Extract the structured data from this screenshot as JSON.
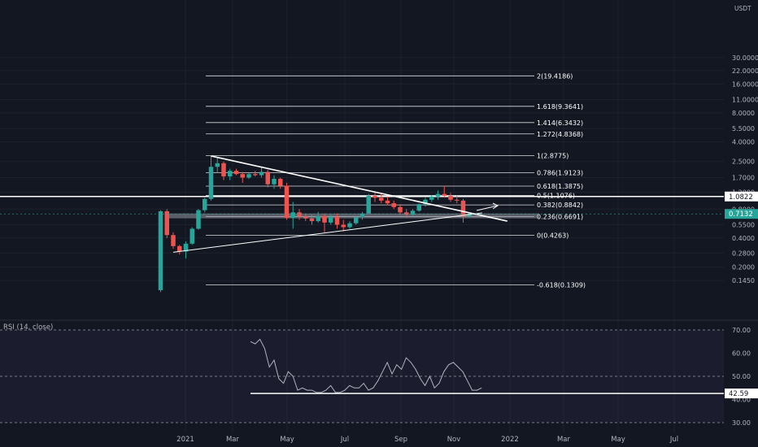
{
  "chart_data": [
    {
      "type": "candlestick",
      "scale": "log",
      "quote_currency": "USDT",
      "ylim": [
        0.12,
        32
      ],
      "x": [
        "2021",
        "Mar",
        "May",
        "Jul",
        "Sep",
        "Nov",
        "2022",
        "Mar",
        "May",
        "Jul"
      ],
      "y_ticks": [
        "30.0000",
        "22.0000",
        "16.0000",
        "11.0000",
        "8.0000",
        "5.5000",
        "4.0000",
        "2.5000",
        "1.7000",
        "1.2000",
        "0.8000",
        "0.5500",
        "0.4000",
        "0.2800",
        "0.2000",
        "0.1450"
      ],
      "candles": [
        {
          "o": 0.115,
          "h": 0.78,
          "l": 0.11,
          "c": 0.76
        },
        {
          "o": 0.76,
          "h": 0.8,
          "l": 0.4,
          "c": 0.43
        },
        {
          "o": 0.43,
          "h": 0.46,
          "l": 0.31,
          "c": 0.33
        },
        {
          "o": 0.33,
          "h": 0.34,
          "l": 0.27,
          "c": 0.29
        },
        {
          "o": 0.29,
          "h": 0.37,
          "l": 0.245,
          "c": 0.35
        },
        {
          "o": 0.35,
          "h": 0.52,
          "l": 0.34,
          "c": 0.5
        },
        {
          "o": 0.5,
          "h": 0.8,
          "l": 0.49,
          "c": 0.78
        },
        {
          "o": 0.78,
          "h": 1.05,
          "l": 0.74,
          "c": 1.02
        },
        {
          "o": 1.02,
          "h": 2.9,
          "l": 0.98,
          "c": 2.2
        },
        {
          "o": 2.2,
          "h": 2.75,
          "l": 1.9,
          "c": 2.4
        },
        {
          "o": 2.4,
          "h": 2.5,
          "l": 1.6,
          "c": 1.75
        },
        {
          "o": 1.75,
          "h": 2.1,
          "l": 1.6,
          "c": 2.0
        },
        {
          "o": 2.0,
          "h": 2.1,
          "l": 1.8,
          "c": 1.85
        },
        {
          "o": 1.85,
          "h": 1.95,
          "l": 1.5,
          "c": 1.7
        },
        {
          "o": 1.7,
          "h": 1.9,
          "l": 1.65,
          "c": 1.85
        },
        {
          "o": 1.85,
          "h": 2.0,
          "l": 1.75,
          "c": 1.8
        },
        {
          "o": 1.8,
          "h": 2.2,
          "l": 1.7,
          "c": 1.95
        },
        {
          "o": 1.95,
          "h": 2.05,
          "l": 1.35,
          "c": 1.45
        },
        {
          "o": 1.45,
          "h": 1.8,
          "l": 1.3,
          "c": 1.65
        },
        {
          "o": 1.65,
          "h": 1.7,
          "l": 1.3,
          "c": 1.4
        },
        {
          "o": 1.4,
          "h": 1.5,
          "l": 0.62,
          "c": 0.65
        },
        {
          "o": 0.65,
          "h": 0.95,
          "l": 0.5,
          "c": 0.74
        },
        {
          "o": 0.74,
          "h": 0.8,
          "l": 0.62,
          "c": 0.67
        },
        {
          "o": 0.67,
          "h": 0.72,
          "l": 0.6,
          "c": 0.64
        },
        {
          "o": 0.64,
          "h": 0.7,
          "l": 0.55,
          "c": 0.6
        },
        {
          "o": 0.6,
          "h": 0.75,
          "l": 0.58,
          "c": 0.68
        },
        {
          "o": 0.68,
          "h": 0.72,
          "l": 0.46,
          "c": 0.58
        },
        {
          "o": 0.58,
          "h": 0.7,
          "l": 0.55,
          "c": 0.66
        },
        {
          "o": 0.66,
          "h": 0.72,
          "l": 0.5,
          "c": 0.55
        },
        {
          "o": 0.55,
          "h": 0.62,
          "l": 0.47,
          "c": 0.52
        },
        {
          "o": 0.52,
          "h": 0.6,
          "l": 0.5,
          "c": 0.57
        },
        {
          "o": 0.57,
          "h": 0.68,
          "l": 0.55,
          "c": 0.66
        },
        {
          "o": 0.66,
          "h": 0.75,
          "l": 0.62,
          "c": 0.72
        },
        {
          "o": 0.72,
          "h": 1.15,
          "l": 0.7,
          "c": 1.1
        },
        {
          "o": 1.1,
          "h": 1.2,
          "l": 0.95,
          "c": 1.05
        },
        {
          "o": 1.05,
          "h": 1.15,
          "l": 0.92,
          "c": 0.98
        },
        {
          "o": 0.98,
          "h": 1.08,
          "l": 0.88,
          "c": 0.92
        },
        {
          "o": 0.92,
          "h": 0.98,
          "l": 0.8,
          "c": 0.84
        },
        {
          "o": 0.84,
          "h": 0.9,
          "l": 0.7,
          "c": 0.74
        },
        {
          "o": 0.74,
          "h": 0.8,
          "l": 0.65,
          "c": 0.7
        },
        {
          "o": 0.7,
          "h": 0.8,
          "l": 0.68,
          "c": 0.77
        },
        {
          "o": 0.77,
          "h": 0.92,
          "l": 0.75,
          "c": 0.9
        },
        {
          "o": 0.9,
          "h": 1.05,
          "l": 0.85,
          "c": 1.0
        },
        {
          "o": 1.0,
          "h": 1.12,
          "l": 0.95,
          "c": 1.08
        },
        {
          "o": 1.08,
          "h": 1.25,
          "l": 1.0,
          "c": 1.15
        },
        {
          "o": 1.15,
          "h": 1.4,
          "l": 1.05,
          "c": 1.1
        },
        {
          "o": 1.1,
          "h": 1.18,
          "l": 0.95,
          "c": 1.0
        },
        {
          "o": 1.0,
          "h": 1.1,
          "l": 0.92,
          "c": 0.98
        },
        {
          "o": 0.98,
          "h": 1.02,
          "l": 0.58,
          "c": 0.67
        },
        {
          "o": 0.67,
          "h": 0.73,
          "l": 0.65,
          "c": 0.7132
        }
      ],
      "fib_levels": [
        {
          "label": "2(19.4186)",
          "value": 19.4186
        },
        {
          "label": "1.618(9.3641)",
          "value": 9.3641
        },
        {
          "label": "1.414(6.3432)",
          "value": 6.3432
        },
        {
          "label": "1.272(4.8368)",
          "value": 4.8368
        },
        {
          "label": "1(2.8775)",
          "value": 2.8775
        },
        {
          "label": "0.786(1.9123)",
          "value": 1.9123
        },
        {
          "label": "0.618(1.3875)",
          "value": 1.3875
        },
        {
          "label": "0.5(1.1076)",
          "value": 1.1076
        },
        {
          "label": "0.382(0.8842)",
          "value": 0.8842
        },
        {
          "label": "0.236(0.6691)",
          "value": 0.6691
        },
        {
          "label": "0(0.4263)",
          "value": 0.4263
        },
        {
          "label": "-0.618(0.1309)",
          "value": 0.1309
        }
      ],
      "horizontal_line": {
        "value": 1.0822,
        "label": "1.0822"
      },
      "support_zone": {
        "value": 0.68
      },
      "last_price": {
        "value": 0.7132,
        "label": "0.7132",
        "color": "#26a69a"
      },
      "trendlines": [
        {
          "name": "descending",
          "from": {
            "candle": 8,
            "price": 2.85
          },
          "to": {
            "candle": 55,
            "price": 0.6
          }
        },
        {
          "name": "ascending",
          "from": {
            "candle": 2,
            "price": 0.285
          },
          "to": {
            "candle": 51,
            "price": 0.73
          }
        }
      ],
      "colors": {
        "up": "#26a69a",
        "down": "#ef5350",
        "background": "#131722",
        "line": "#ffffff"
      }
    },
    {
      "type": "line",
      "title": "RSI (14, close)",
      "ylim": [
        27,
        72
      ],
      "y_ticks": [
        "70.00",
        "60.00",
        "50.00",
        "40.00",
        "30.00"
      ],
      "bands": [
        70,
        50,
        30
      ],
      "values": [
        65,
        64,
        66,
        62,
        54,
        57,
        49,
        47,
        52,
        50,
        44,
        45,
        44,
        44,
        43,
        43,
        44,
        46,
        43,
        43,
        44,
        46,
        45,
        45,
        47,
        44,
        45,
        48,
        52,
        56,
        51,
        55,
        53,
        58,
        56,
        53,
        49,
        46,
        50,
        45,
        47,
        52,
        55,
        56,
        54,
        52,
        48,
        44,
        44,
        45
      ],
      "level_line": {
        "value": 42.59,
        "label": "42.59"
      },
      "colors": {
        "line": "#b2b5be",
        "band_fill": "#7e57c2"
      }
    }
  ],
  "x_axis_labels": [
    "2021",
    "Mar",
    "May",
    "Jul",
    "Sep",
    "Nov",
    "2022",
    "Mar",
    "May",
    "Jul"
  ]
}
